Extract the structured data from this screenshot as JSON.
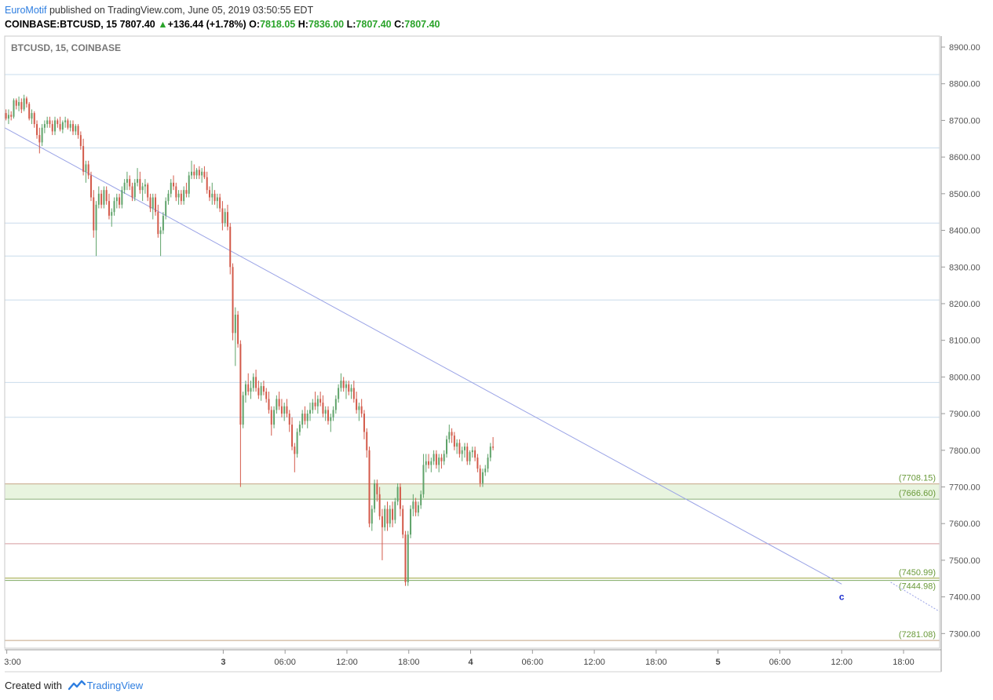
{
  "header": {
    "publisher": "EuroMotif",
    "published_text": "published on TradingView.com, June 05, 2019 03:50:55 EDT",
    "symbol": "COINBASE:BTCUSD, 15",
    "last": "7807.40",
    "change": "+136.44 (+1.78%)",
    "o_label": "O:",
    "o": "7818.05",
    "h_label": "H:",
    "h": "7836.00",
    "l_label": "L:",
    "l": "7807.40",
    "c_label": "C:",
    "c": "7807.40"
  },
  "footer": {
    "created": "Created with",
    "brand": "TradingView"
  },
  "colors": {
    "up": "#5fa36a",
    "down": "#d35a4a",
    "grid": "#c9dcec",
    "trend": "#9aa3e6",
    "zone": "#e8f4df",
    "axis_text": "#555555"
  },
  "chart_data": {
    "type": "candlestick",
    "title": "BTCUSD, 15, COINBASE",
    "ylim": [
      7260,
      8930
    ],
    "y_ticks": [
      7300,
      7400,
      7500,
      7600,
      7700,
      7800,
      7900,
      8000,
      8100,
      8200,
      8300,
      8400,
      8500,
      8600,
      8700,
      8800,
      8900
    ],
    "y_tick_labels": [
      "7300.00",
      "7400.00",
      "7500.00",
      "7600.00",
      "7700.00",
      "7800.00",
      "7900.00",
      "8000.00",
      "8100.00",
      "8200.00",
      "8300.00",
      "8400.00",
      "8500.00",
      "8600.00",
      "8700.00",
      "8800.00",
      "8900.00"
    ],
    "x_ticks": [
      {
        "t": "2019-06-02 03:00",
        "label": "3:00"
      },
      {
        "t": "2019-06-03 00:00",
        "label": "3"
      },
      {
        "t": "2019-06-03 06:00",
        "label": "06:00"
      },
      {
        "t": "2019-06-03 12:00",
        "label": "12:00"
      },
      {
        "t": "2019-06-03 18:00",
        "label": "18:00"
      },
      {
        "t": "2019-06-04 00:00",
        "label": "4"
      },
      {
        "t": "2019-06-04 06:00",
        "label": "06:00"
      },
      {
        "t": "2019-06-04 12:00",
        "label": "12:00"
      },
      {
        "t": "2019-06-04 18:00",
        "label": "18:00"
      },
      {
        "t": "2019-06-05 00:00",
        "label": "5"
      },
      {
        "t": "2019-06-05 06:00",
        "label": "06:00"
      },
      {
        "t": "2019-06-05 12:00",
        "label": "12:00"
      },
      {
        "t": "2019-06-05 18:00",
        "label": "18:00"
      }
    ],
    "xlim": [
      "2019-06-02 02:48",
      "2019-06-05 21:30"
    ],
    "horizontal_lines": [
      8825,
      8625,
      8420,
      8330,
      8210,
      7985,
      7890,
      7545
    ],
    "zone": {
      "top": 7708.15,
      "bottom": 7666.6
    },
    "levels": [
      {
        "value": 7708.15,
        "label": "(7708.15)"
      },
      {
        "value": 7666.6,
        "label": "(7666.60)"
      },
      {
        "value": 7450.99,
        "label": "(7450.99)"
      },
      {
        "value": 7444.98,
        "label": "(7444.98)"
      },
      {
        "value": 7281.08,
        "label": "(7281.08)"
      }
    ],
    "trendline": {
      "start": [
        "2019-06-02 02:48",
        8680
      ],
      "end": [
        "2019-06-05 12:00",
        7435
      ]
    },
    "trendline_ext": {
      "start": [
        "2019-06-05 16:45",
        7440
      ],
      "end": [
        "2019-06-05 21:30",
        7360
      ]
    },
    "annotation": {
      "text": "c",
      "t": "2019-06-05 12:00",
      "value": 7400
    },
    "candles_start": "2019-06-02 02:48",
    "candle_interval_min": 15,
    "candles": [
      [
        8720,
        8730,
        8700,
        8705
      ],
      [
        8705,
        8730,
        8690,
        8715
      ],
      [
        8715,
        8725,
        8700,
        8710
      ],
      [
        8710,
        8760,
        8705,
        8755
      ],
      [
        8755,
        8760,
        8730,
        8740
      ],
      [
        8740,
        8765,
        8725,
        8750
      ],
      [
        8750,
        8760,
        8720,
        8730
      ],
      [
        8730,
        8770,
        8725,
        8760
      ],
      [
        8760,
        8765,
        8735,
        8745
      ],
      [
        8745,
        8750,
        8700,
        8705
      ],
      [
        8705,
        8730,
        8690,
        8720
      ],
      [
        8720,
        8725,
        8680,
        8690
      ],
      [
        8690,
        8700,
        8650,
        8660
      ],
      [
        8660,
        8680,
        8610,
        8640
      ],
      [
        8640,
        8690,
        8630,
        8680
      ],
      [
        8680,
        8700,
        8665,
        8690
      ],
      [
        8690,
        8710,
        8680,
        8700
      ],
      [
        8700,
        8710,
        8680,
        8690
      ],
      [
        8690,
        8700,
        8660,
        8670
      ],
      [
        8670,
        8710,
        8660,
        8700
      ],
      [
        8700,
        8705,
        8680,
        8690
      ],
      [
        8690,
        8710,
        8670,
        8675
      ],
      [
        8675,
        8700,
        8665,
        8695
      ],
      [
        8695,
        8710,
        8680,
        8700
      ],
      [
        8700,
        8705,
        8675,
        8680
      ],
      [
        8680,
        8700,
        8670,
        8690
      ],
      [
        8690,
        8700,
        8660,
        8670
      ],
      [
        8670,
        8690,
        8660,
        8685
      ],
      [
        8685,
        8690,
        8650,
        8660
      ],
      [
        8660,
        8670,
        8620,
        8630
      ],
      [
        8630,
        8650,
        8550,
        8560
      ],
      [
        8560,
        8590,
        8530,
        8580
      ],
      [
        8580,
        8590,
        8540,
        8550
      ],
      [
        8550,
        8560,
        8480,
        8490
      ],
      [
        8490,
        8510,
        8380,
        8400
      ],
      [
        8400,
        8480,
        8330,
        8470
      ],
      [
        8470,
        8520,
        8460,
        8500
      ],
      [
        8500,
        8510,
        8460,
        8470
      ],
      [
        8470,
        8520,
        8460,
        8510
      ],
      [
        8510,
        8520,
        8470,
        8480
      ],
      [
        8480,
        8500,
        8430,
        8440
      ],
      [
        8440,
        8460,
        8410,
        8450
      ],
      [
        8450,
        8490,
        8440,
        8480
      ],
      [
        8480,
        8500,
        8460,
        8490
      ],
      [
        8490,
        8500,
        8460,
        8470
      ],
      [
        8470,
        8520,
        8460,
        8510
      ],
      [
        8510,
        8540,
        8500,
        8530
      ],
      [
        8530,
        8560,
        8510,
        8540
      ],
      [
        8540,
        8550,
        8510,
        8520
      ],
      [
        8520,
        8530,
        8480,
        8490
      ],
      [
        8490,
        8540,
        8480,
        8530
      ],
      [
        8530,
        8570,
        8520,
        8540
      ],
      [
        8540,
        8560,
        8500,
        8510
      ],
      [
        8510,
        8530,
        8480,
        8520
      ],
      [
        8520,
        8540,
        8500,
        8525
      ],
      [
        8525,
        8530,
        8480,
        8490
      ],
      [
        8490,
        8500,
        8450,
        8460
      ],
      [
        8460,
        8500,
        8430,
        8490
      ],
      [
        8490,
        8500,
        8440,
        8450
      ],
      [
        8450,
        8470,
        8380,
        8390
      ],
      [
        8390,
        8410,
        8330,
        8400
      ],
      [
        8400,
        8450,
        8390,
        8440
      ],
      [
        8440,
        8490,
        8430,
        8480
      ],
      [
        8480,
        8510,
        8470,
        8500
      ],
      [
        8500,
        8540,
        8490,
        8530
      ],
      [
        8530,
        8550,
        8510,
        8520
      ],
      [
        8520,
        8530,
        8480,
        8490
      ],
      [
        8490,
        8510,
        8470,
        8500
      ],
      [
        8500,
        8510,
        8470,
        8480
      ],
      [
        8480,
        8520,
        8470,
        8510
      ],
      [
        8510,
        8530,
        8490,
        8500
      ],
      [
        8500,
        8560,
        8490,
        8550
      ],
      [
        8550,
        8590,
        8540,
        8560
      ],
      [
        8560,
        8580,
        8540,
        8550
      ],
      [
        8550,
        8570,
        8540,
        8565
      ],
      [
        8565,
        8575,
        8540,
        8550
      ],
      [
        8550,
        8570,
        8530,
        8560
      ],
      [
        8560,
        8575,
        8540,
        8545
      ],
      [
        8545,
        8560,
        8500,
        8510
      ],
      [
        8510,
        8520,
        8480,
        8490
      ],
      [
        8490,
        8530,
        8470,
        8500
      ],
      [
        8500,
        8510,
        8470,
        8480
      ],
      [
        8480,
        8500,
        8460,
        8490
      ],
      [
        8490,
        8500,
        8450,
        8460
      ],
      [
        8460,
        8480,
        8400,
        8420
      ],
      [
        8420,
        8460,
        8410,
        8450
      ],
      [
        8450,
        8470,
        8400,
        8410
      ],
      [
        8410,
        8420,
        8280,
        8300
      ],
      [
        8300,
        8310,
        8100,
        8120
      ],
      [
        8120,
        8190,
        8030,
        8170
      ],
      [
        8170,
        8180,
        8080,
        8090
      ],
      [
        8090,
        8100,
        7700,
        7870
      ],
      [
        7870,
        7960,
        7860,
        7950
      ],
      [
        7950,
        7990,
        7930,
        7980
      ],
      [
        7980,
        8010,
        7950,
        7960
      ],
      [
        7960,
        7990,
        7940,
        7970
      ],
      [
        7970,
        8010,
        7960,
        8000
      ],
      [
        8000,
        8020,
        7960,
        7970
      ],
      [
        7970,
        7990,
        7940,
        7950
      ],
      [
        7950,
        7985,
        7935,
        7975
      ],
      [
        7975,
        7990,
        7950,
        7960
      ],
      [
        7960,
        7970,
        7930,
        7940
      ],
      [
        7940,
        7960,
        7900,
        7910
      ],
      [
        7910,
        7920,
        7840,
        7870
      ],
      [
        7870,
        7920,
        7860,
        7910
      ],
      [
        7910,
        7950,
        7900,
        7940
      ],
      [
        7940,
        7960,
        7910,
        7920
      ],
      [
        7920,
        7940,
        7890,
        7900
      ],
      [
        7900,
        7930,
        7880,
        7920
      ],
      [
        7920,
        7940,
        7890,
        7900
      ],
      [
        7900,
        7910,
        7850,
        7870
      ],
      [
        7870,
        7890,
        7800,
        7810
      ],
      [
        7810,
        7820,
        7740,
        7790
      ],
      [
        7790,
        7860,
        7780,
        7850
      ],
      [
        7850,
        7880,
        7840,
        7870
      ],
      [
        7870,
        7910,
        7860,
        7900
      ],
      [
        7900,
        7920,
        7870,
        7880
      ],
      [
        7880,
        7910,
        7860,
        7900
      ],
      [
        7900,
        7930,
        7880,
        7910
      ],
      [
        7910,
        7940,
        7900,
        7930
      ],
      [
        7930,
        7960,
        7910,
        7920
      ],
      [
        7920,
        7950,
        7900,
        7940
      ],
      [
        7940,
        7960,
        7920,
        7930
      ],
      [
        7930,
        7950,
        7890,
        7900
      ],
      [
        7900,
        7920,
        7880,
        7910
      ],
      [
        7910,
        7920,
        7870,
        7880
      ],
      [
        7880,
        7900,
        7850,
        7890
      ],
      [
        7890,
        7920,
        7880,
        7910
      ],
      [
        7910,
        7950,
        7900,
        7940
      ],
      [
        7940,
        7980,
        7930,
        7970
      ],
      [
        7970,
        8010,
        7960,
        7990
      ],
      [
        7990,
        8000,
        7960,
        7970
      ],
      [
        7970,
        7990,
        7940,
        7980
      ],
      [
        7980,
        7990,
        7950,
        7960
      ],
      [
        7960,
        7980,
        7940,
        7970
      ],
      [
        7970,
        7990,
        7930,
        7940
      ],
      [
        7940,
        7960,
        7900,
        7910
      ],
      [
        7910,
        7930,
        7880,
        7920
      ],
      [
        7920,
        7940,
        7890,
        7900
      ],
      [
        7900,
        7910,
        7830,
        7850
      ],
      [
        7850,
        7860,
        7780,
        7800
      ],
      [
        7800,
        7810,
        7590,
        7600
      ],
      [
        7600,
        7650,
        7580,
        7640
      ],
      [
        7640,
        7720,
        7630,
        7710
      ],
      [
        7710,
        7720,
        7660,
        7680
      ],
      [
        7680,
        7700,
        7610,
        7620
      ],
      [
        7620,
        7640,
        7500,
        7590
      ],
      [
        7590,
        7650,
        7580,
        7640
      ],
      [
        7640,
        7660,
        7580,
        7600
      ],
      [
        7600,
        7650,
        7590,
        7640
      ],
      [
        7640,
        7660,
        7590,
        7610
      ],
      [
        7610,
        7670,
        7600,
        7660
      ],
      [
        7660,
        7710,
        7650,
        7700
      ],
      [
        7700,
        7710,
        7620,
        7640
      ],
      [
        7640,
        7650,
        7560,
        7570
      ],
      [
        7570,
        7580,
        7430,
        7440
      ],
      [
        7440,
        7580,
        7430,
        7570
      ],
      [
        7570,
        7650,
        7560,
        7640
      ],
      [
        7640,
        7680,
        7620,
        7660
      ],
      [
        7660,
        7670,
        7620,
        7630
      ],
      [
        7630,
        7660,
        7620,
        7650
      ],
      [
        7650,
        7690,
        7640,
        7680
      ],
      [
        7680,
        7790,
        7670,
        7760
      ],
      [
        7760,
        7790,
        7740,
        7770
      ],
      [
        7770,
        7790,
        7750,
        7760
      ],
      [
        7760,
        7780,
        7740,
        7770
      ],
      [
        7770,
        7800,
        7760,
        7790
      ],
      [
        7790,
        7800,
        7750,
        7760
      ],
      [
        7760,
        7790,
        7740,
        7780
      ],
      [
        7780,
        7790,
        7750,
        7770
      ],
      [
        7770,
        7800,
        7760,
        7790
      ],
      [
        7790,
        7840,
        7780,
        7830
      ],
      [
        7830,
        7870,
        7820,
        7850
      ],
      [
        7850,
        7860,
        7820,
        7840
      ],
      [
        7840,
        7850,
        7800,
        7810
      ],
      [
        7810,
        7830,
        7790,
        7820
      ],
      [
        7820,
        7830,
        7780,
        7790
      ],
      [
        7790,
        7810,
        7770,
        7800
      ],
      [
        7800,
        7820,
        7780,
        7810
      ],
      [
        7810,
        7820,
        7760,
        7770
      ],
      [
        7770,
        7800,
        7760,
        7795
      ],
      [
        7795,
        7810,
        7780,
        7800
      ],
      [
        7800,
        7810,
        7770,
        7780
      ],
      [
        7780,
        7790,
        7740,
        7750
      ],
      [
        7750,
        7760,
        7700,
        7710
      ],
      [
        7710,
        7750,
        7700,
        7740
      ],
      [
        7740,
        7760,
        7730,
        7750
      ],
      [
        7750,
        7790,
        7740,
        7780
      ],
      [
        7780,
        7820,
        7770,
        7810
      ],
      [
        7810,
        7836,
        7800,
        7807
      ]
    ]
  }
}
